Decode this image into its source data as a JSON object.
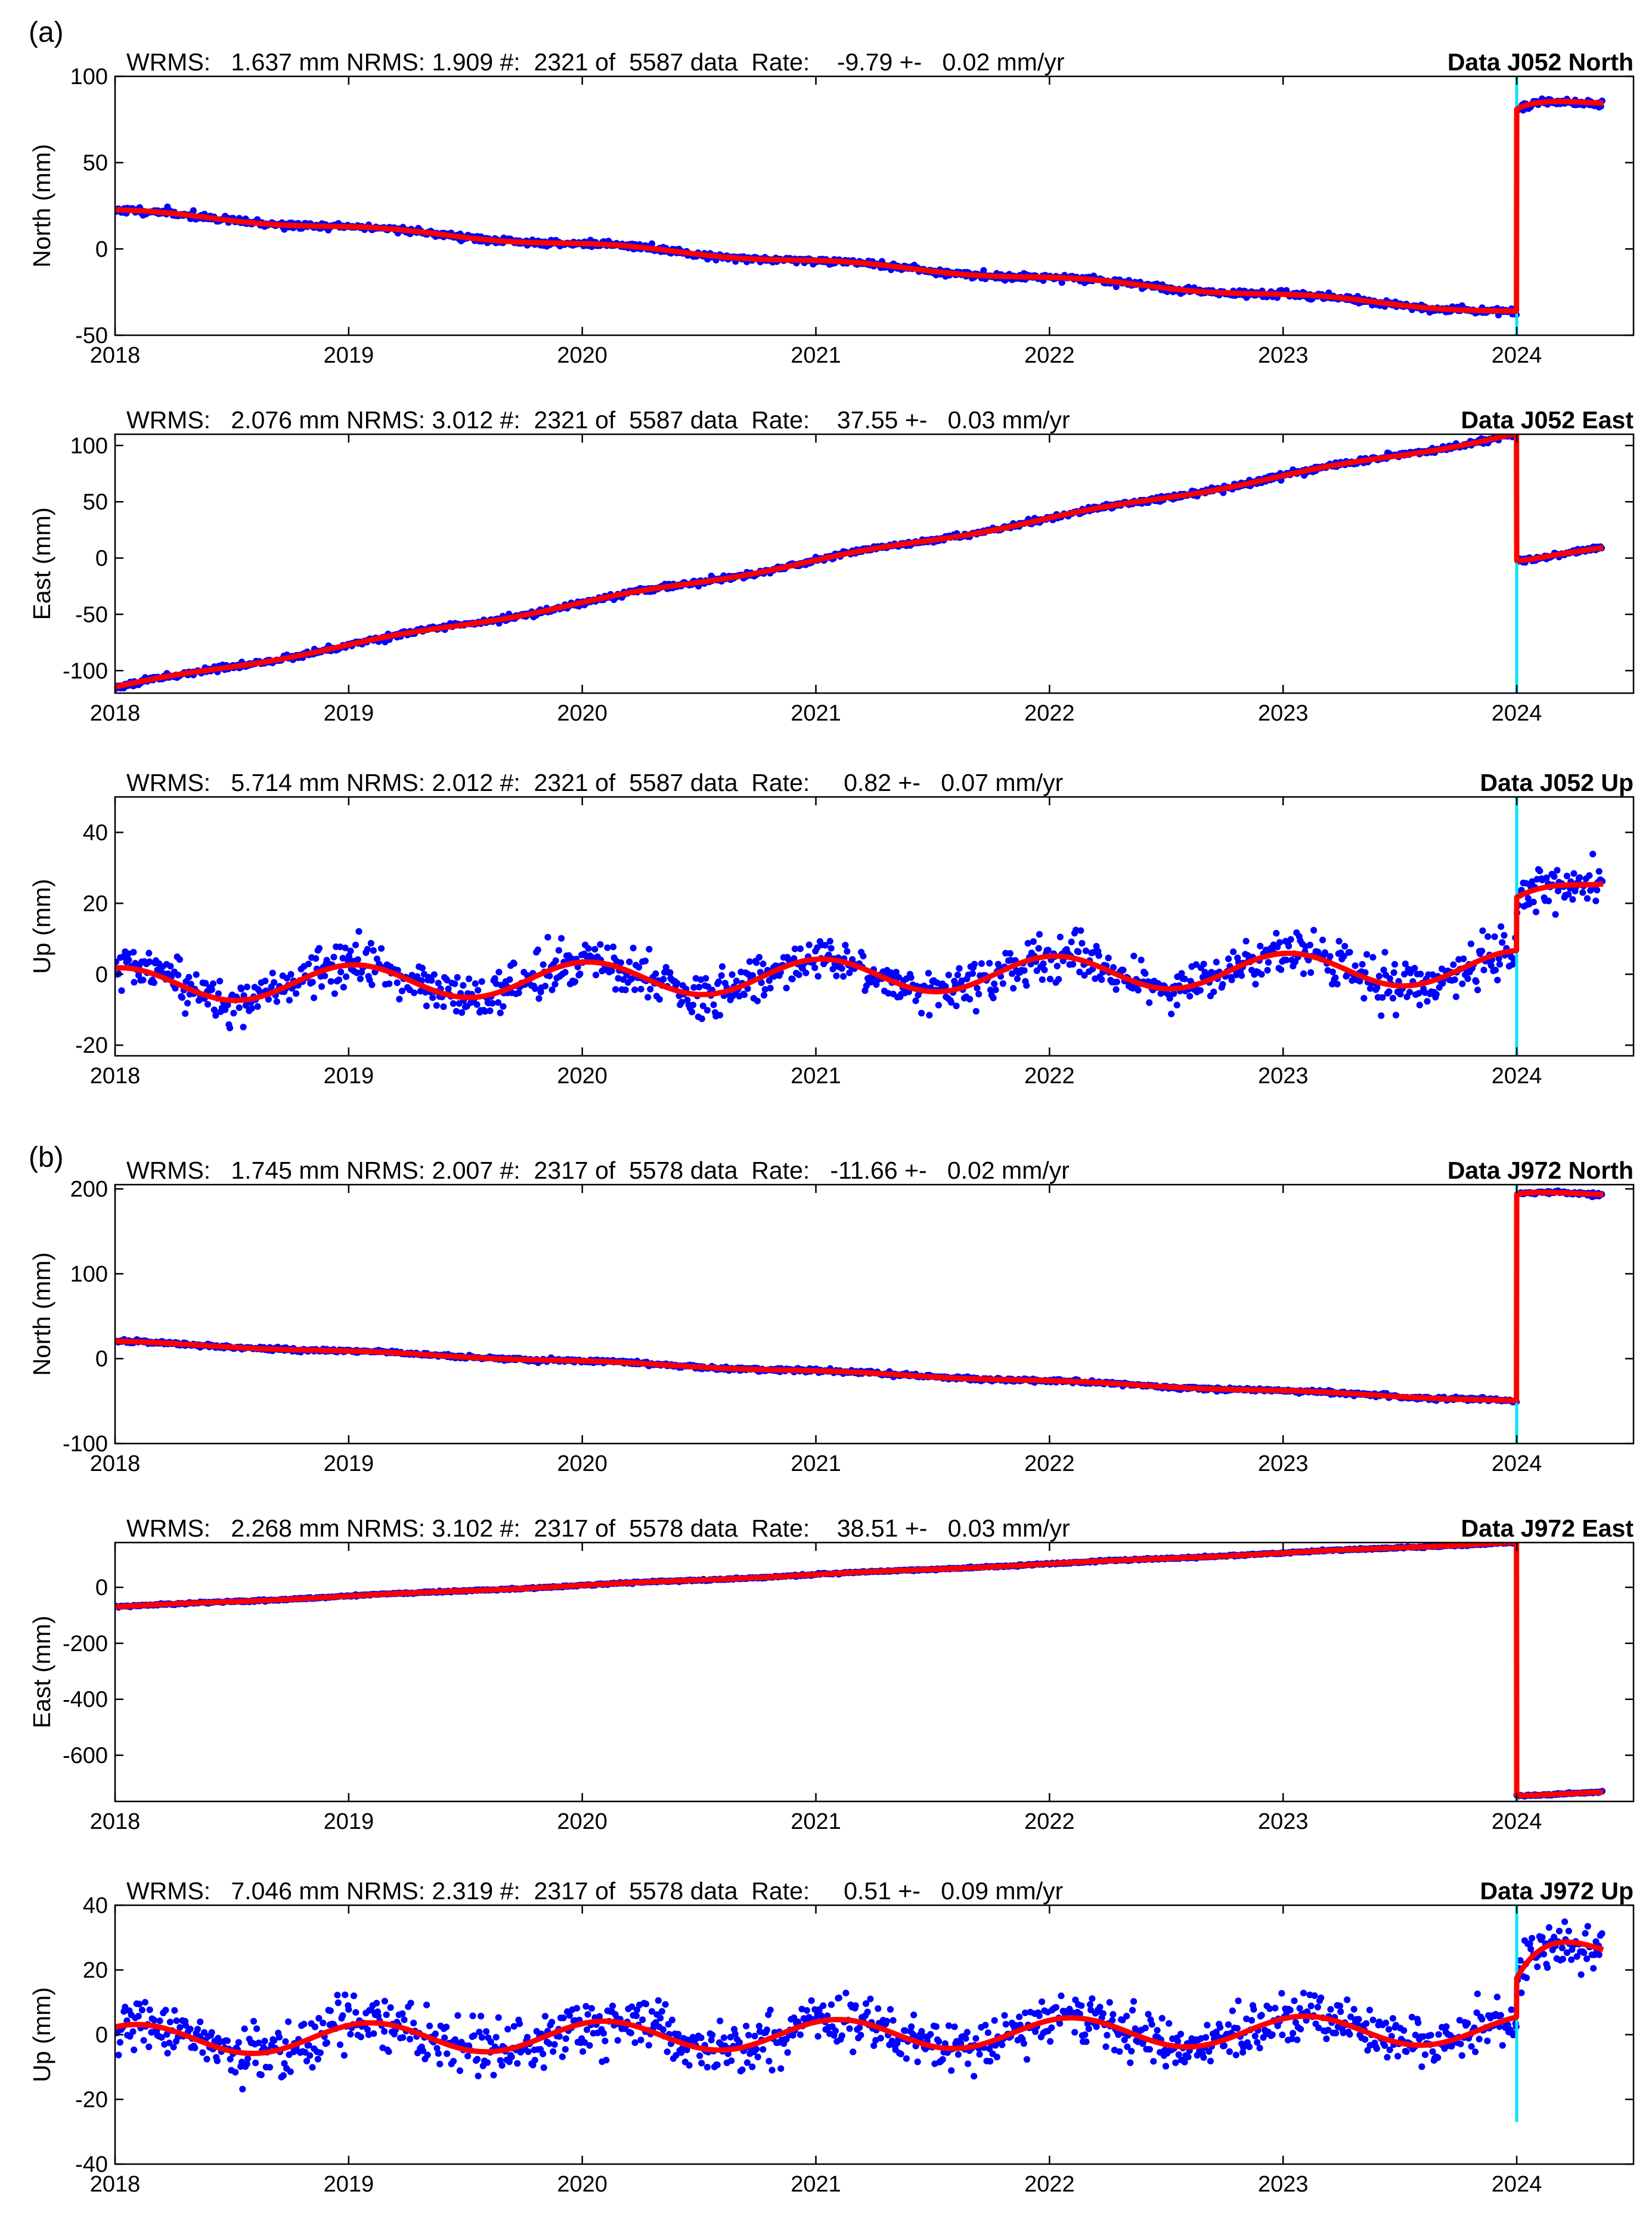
{
  "figure": {
    "group_labels": [
      "(a)",
      "(b)"
    ]
  },
  "colors": {
    "data": "#0000ff",
    "model": "#ff0000",
    "event_line": "#00e5ff",
    "axis": "#000000"
  },
  "chart_data": [
    {
      "type": "scatter",
      "group": "(a)",
      "title": "Data J052 North",
      "stats": "WRMS:   1.637 mm NRMS: 1.909 #:  2321 of  5587 data  Rate:    -9.79 +-   0.02 mm/yr",
      "ylabel": "North (mm)",
      "xlabel": "",
      "xlim": [
        2018.0,
        2024.5
      ],
      "ylim": [
        -50,
        100
      ],
      "xticks": [
        2018,
        2019,
        2020,
        2021,
        2022,
        2023,
        2024
      ],
      "yticks": [
        -50,
        0,
        50,
        100
      ],
      "model": {
        "start": 22.0,
        "rate": -9.79,
        "annual_amp": 1.2,
        "phase": 0.6,
        "offset_epoch": 2024.0,
        "offset": 117.0,
        "post_rate": 8.0,
        "post_tau": 0.06,
        "post_amp": 4.5,
        "end_epoch": 2024.37
      },
      "scatter_sigma": 1.8,
      "seed": 11,
      "event_epoch": 2024.0,
      "event_line_range": [
        -50,
        100
      ]
    },
    {
      "type": "scatter",
      "group": "(a)",
      "title": "Data J052 East",
      "stats": "WRMS:   2.076 mm NRMS: 3.012 #:  2321 of  5587 data  Rate:    37.55 +-   0.03 mm/yr",
      "ylabel": "East (mm)",
      "xlabel": "",
      "xlim": [
        2018.0,
        2024.5
      ],
      "ylim": [
        -120,
        110
      ],
      "xticks": [
        2018,
        2019,
        2020,
        2021,
        2022,
        2023,
        2024
      ],
      "yticks": [
        -100,
        -50,
        0,
        50,
        100
      ],
      "model": {
        "start": -115.0,
        "rate": 37.55,
        "annual_amp": 1.5,
        "phase": 0.3,
        "offset_epoch": 2024.0,
        "offset": -113.0,
        "post_rate": -2.0,
        "post_tau": 0.05,
        "post_amp": -2.0,
        "end_epoch": 2024.37
      },
      "scatter_sigma": 2.2,
      "seed": 23,
      "event_epoch": 2024.0,
      "event_line_range": [
        -120,
        110
      ]
    },
    {
      "type": "scatter",
      "group": "(a)",
      "title": "Data J052 Up",
      "stats": "WRMS:   5.714 mm NRMS: 2.012 #:  2321 of  5587 data  Rate:     0.82 +-   0.07 mm/yr",
      "ylabel": "Up (mm)",
      "xlabel": "",
      "xlim": [
        2018.0,
        2024.5
      ],
      "ylim": [
        -23,
        50
      ],
      "xticks": [
        2018,
        2019,
        2020,
        2021,
        2022,
        2023,
        2024
      ],
      "yticks": [
        -20,
        0,
        20,
        40
      ],
      "model": {
        "start": -3.0,
        "rate": 0.82,
        "annual_amp": 4.8,
        "phase": 1.45,
        "offset_epoch": 2024.0,
        "offset": 15.0,
        "post_rate": 30.0,
        "post_tau": 0.0,
        "post_amp": 0.0,
        "end_epoch": 2024.37
      },
      "scatter_sigma": 5.7,
      "seed": 37,
      "event_epoch": 2024.0,
      "event_line_range": [
        -23,
        50
      ]
    },
    {
      "type": "scatter",
      "group": "(b)",
      "title": "Data J972 North",
      "stats": "WRMS:   1.745 mm NRMS: 2.007 #:  2317 of  5578 data  Rate:   -11.66 +-   0.02 mm/yr",
      "ylabel": "North (mm)",
      "xlabel": "",
      "xlim": [
        2018.0,
        2024.5
      ],
      "ylim": [
        -100,
        205
      ],
      "xticks": [
        2018,
        2019,
        2020,
        2021,
        2022,
        2023,
        2024
      ],
      "yticks": [
        -100,
        0,
        100,
        200
      ],
      "model": {
        "start": 20.0,
        "rate": -11.66,
        "annual_amp": 1.0,
        "phase": 0.8,
        "offset_epoch": 2024.0,
        "offset": 243.0,
        "post_rate": 4.0,
        "post_tau": 0.05,
        "post_amp": 3.0,
        "end_epoch": 2024.37
      },
      "scatter_sigma": 1.9,
      "seed": 41,
      "event_epoch": 2024.0,
      "event_line_range": [
        -100,
        205
      ]
    },
    {
      "type": "scatter",
      "group": "(b)",
      "title": "Data J972 East",
      "stats": "WRMS:   2.268 mm NRMS: 3.102 #:  2317 of  5578 data  Rate:    38.51 +-   0.03 mm/yr",
      "ylabel": "East (mm)",
      "xlabel": "",
      "xlim": [
        2018.0,
        2024.5
      ],
      "ylim": [
        -765,
        160
      ],
      "xticks": [
        2018,
        2019,
        2020,
        2021,
        2022,
        2023,
        2024
      ],
      "yticks": [
        -600,
        -400,
        -200,
        0
      ],
      "model": {
        "start": -70.0,
        "rate": 38.51,
        "annual_amp": 1.5,
        "phase": 0.2,
        "offset_epoch": 2024.0,
        "offset": -905.0,
        "post_rate": 4.0,
        "post_tau": 0.05,
        "post_amp": -4.0,
        "end_epoch": 2024.37
      },
      "scatter_sigma": 2.6,
      "seed": 53,
      "event_epoch": 2024.0,
      "event_line_range": [
        -765,
        160
      ]
    },
    {
      "type": "scatter",
      "group": "(b)",
      "title": "Data J972 Up",
      "stats": "WRMS:   7.046 mm NRMS: 2.319 #:  2317 of  5578 data  Rate:     0.51 +-   0.09 mm/yr",
      "ylabel": "Up (mm)",
      "xlabel": "",
      "xlim": [
        2018.0,
        2024.5
      ],
      "ylim": [
        -40,
        40
      ],
      "xticks": [
        2018,
        2019,
        2020,
        2021,
        2022,
        2023,
        2024
      ],
      "yticks": [
        -40,
        -20,
        0,
        20,
        40
      ],
      "model": {
        "start": -1.5,
        "rate": 0.51,
        "annual_amp": 4.6,
        "phase": 1.0,
        "offset_epoch": 2024.0,
        "offset": 12.0,
        "post_rate": 0.0,
        "post_tau": 0.12,
        "post_amp": 14.0,
        "end_epoch": 2024.37
      },
      "scatter_sigma": 7.0,
      "seed": 67,
      "event_epoch": 2024.0,
      "event_line_range": [
        -27,
        40
      ]
    }
  ]
}
